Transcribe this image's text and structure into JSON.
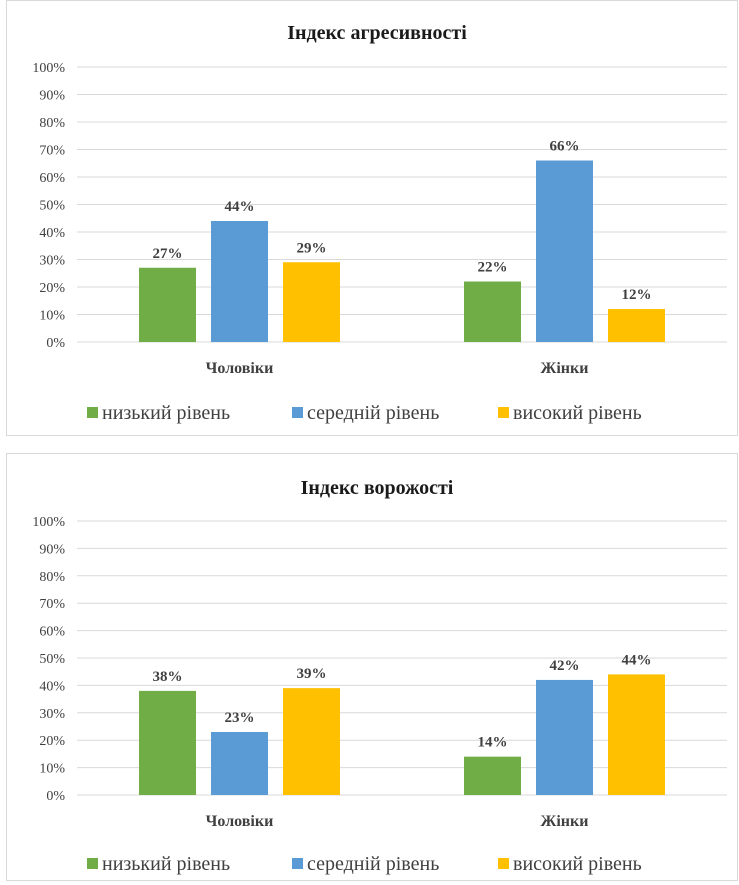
{
  "chart_data": [
    {
      "type": "bar",
      "title": "Індекс агресивності",
      "categories": [
        "Чоловіки",
        "Жінки"
      ],
      "series": [
        {
          "name": "низький рівень",
          "color": "#70ad47",
          "values": [
            27,
            22
          ],
          "labels": [
            "27%",
            "22%"
          ]
        },
        {
          "name": "середній рівень",
          "color": "#5b9bd5",
          "values": [
            44,
            66
          ],
          "labels": [
            "44%",
            "66%"
          ]
        },
        {
          "name": "високий рівень",
          "color": "#ffc000",
          "values": [
            29,
            12
          ],
          "labels": [
            "29%",
            "12%"
          ]
        }
      ],
      "ylim": [
        0,
        100
      ],
      "yticks": [
        "0%",
        "10%",
        "20%",
        "30%",
        "40%",
        "50%",
        "60%",
        "70%",
        "80%",
        "90%",
        "100%"
      ],
      "grid": true,
      "legend": "bottom"
    },
    {
      "type": "bar",
      "title": "Індекс ворожості",
      "categories": [
        "Чоловіки",
        "Жінки"
      ],
      "series": [
        {
          "name": "низький рівень",
          "color": "#70ad47",
          "values": [
            38,
            14
          ],
          "labels": [
            "38%",
            "14%"
          ]
        },
        {
          "name": "середній рівень",
          "color": "#5b9bd5",
          "values": [
            23,
            42
          ],
          "labels": [
            "23%",
            "42%"
          ]
        },
        {
          "name": "високий рівень",
          "color": "#ffc000",
          "values": [
            39,
            44
          ],
          "labels": [
            "39%",
            "44%"
          ]
        }
      ],
      "ylim": [
        0,
        100
      ],
      "yticks": [
        "0%",
        "10%",
        "20%",
        "30%",
        "40%",
        "50%",
        "60%",
        "70%",
        "80%",
        "90%",
        "100%"
      ],
      "grid": true,
      "legend": "bottom"
    }
  ]
}
